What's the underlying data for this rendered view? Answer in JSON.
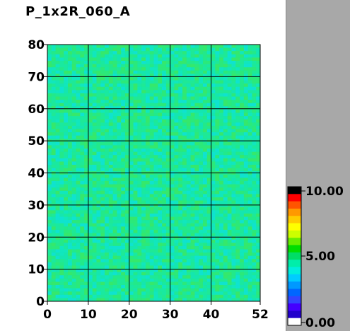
{
  "chart_data": {
    "type": "heatmap",
    "title": "P_1x2R_060_A",
    "xlabel": "",
    "ylabel": "",
    "xlim": [
      0,
      52
    ],
    "ylim": [
      0,
      80
    ],
    "x_ticks": [
      0,
      10,
      20,
      30,
      40,
      52
    ],
    "y_ticks": [
      0,
      10,
      20,
      30,
      40,
      50,
      60,
      70,
      80
    ],
    "grid": true,
    "grid_cells": {
      "columns": 52,
      "rows": 79
    },
    "value_estimate": {
      "typical": 5.0,
      "min": 4.2,
      "max": 5.8
    },
    "colorbar": {
      "min": 0.0,
      "max": 10.0,
      "labels": [
        "10.00",
        "5.00",
        "0.00"
      ],
      "colors": [
        "#000000",
        "#ff0000",
        "#ff5500",
        "#ff9900",
        "#ffcc00",
        "#ffff00",
        "#ccff00",
        "#66ee00",
        "#00dd00",
        "#00dd66",
        "#00eeaa",
        "#00eedd",
        "#00ccff",
        "#0099ff",
        "#0066ff",
        "#3344ff",
        "#4400ff",
        "#2200cc",
        "#ffffff"
      ]
    }
  }
}
